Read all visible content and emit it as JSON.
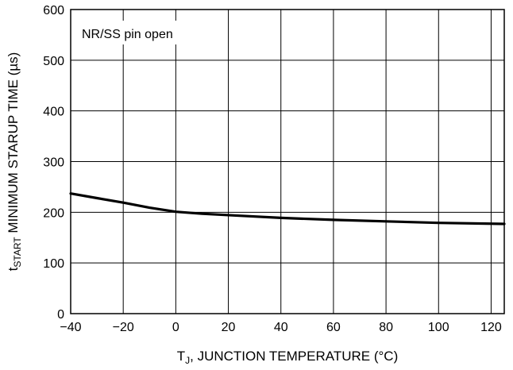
{
  "chart_data": {
    "type": "line",
    "xlabel": {
      "main": "T",
      "sub": "J",
      "rest": ", JUNCTION TEMPERATURE (°C)"
    },
    "ylabel": {
      "main": "t",
      "sub": "START",
      "rest": " MINIMUM STARUP TIME (µs)"
    },
    "annotation": "NR/SS pin open",
    "xlim": [
      -40,
      125
    ],
    "ylim": [
      0,
      600
    ],
    "xticks": [
      -40,
      -20,
      0,
      20,
      40,
      60,
      80,
      100,
      120
    ],
    "xtick_labels": [
      "−40",
      "−20",
      "0",
      "20",
      "40",
      "60",
      "80",
      "100",
      "120"
    ],
    "yticks": [
      0,
      100,
      200,
      300,
      400,
      500,
      600
    ],
    "ytick_labels": [
      "0",
      "100",
      "200",
      "300",
      "400",
      "500",
      "600"
    ],
    "grid": true,
    "series": [
      {
        "x": [
          -40,
          -30,
          -20,
          -10,
          0,
          10,
          25,
          40,
          60,
          80,
          100,
          125
        ],
        "y": [
          237,
          228,
          219,
          209,
          201,
          197,
          193,
          189,
          185,
          182,
          179,
          177
        ],
        "color": "#000000"
      }
    ]
  }
}
